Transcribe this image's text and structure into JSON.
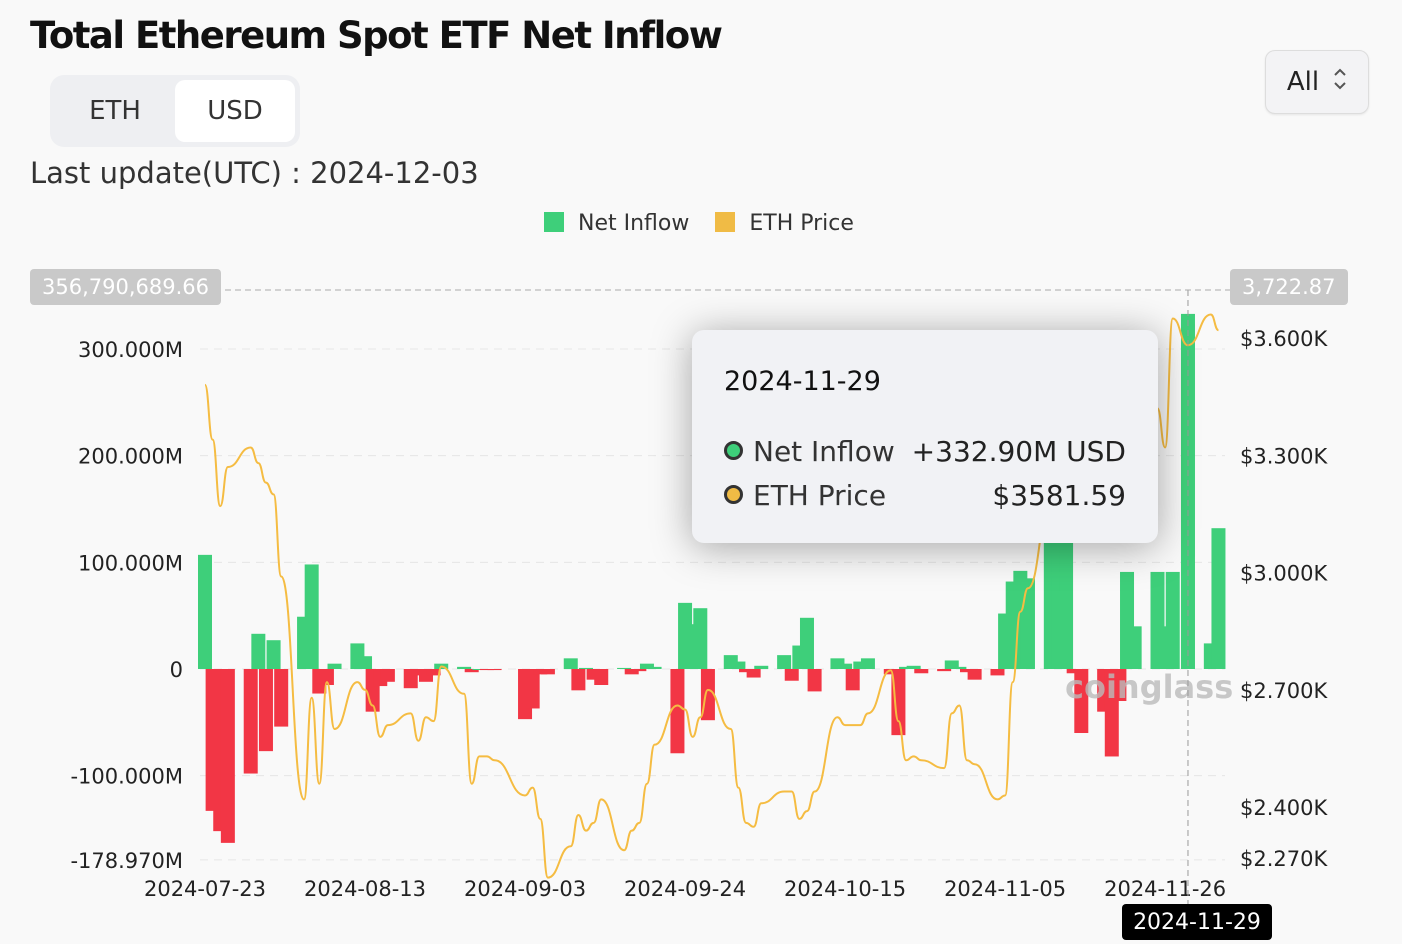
{
  "title": "Total Ethereum Spot ETF Net Inflow",
  "unit_toggle": {
    "options": [
      "ETH",
      "USD"
    ],
    "selected": "USD"
  },
  "range_select": {
    "value": "All"
  },
  "last_update": "Last update(UTC) : 2024-12-03",
  "watermark": "coinglass",
  "tooltip": {
    "date": "2024-11-29",
    "rows": [
      {
        "label": "Net Inflow",
        "value": "+332.90M USD",
        "color": "#3ecf7a"
      },
      {
        "label": "ETH Price",
        "value": "$3581.59",
        "color": "#f0bb45"
      }
    ]
  },
  "crosshair": {
    "left_value": "356,790,689.66",
    "right_value": "3,722.87",
    "x_label": "2024-11-29"
  },
  "chart_data": {
    "type": "bar+line",
    "legend": [
      {
        "name": "Net Inflow",
        "color": "#3ecf7a"
      },
      {
        "name": "ETH Price",
        "color": "#f0bb45"
      }
    ],
    "legend_position": "top",
    "grid": true,
    "y_left": {
      "ticks": [
        "300.000M",
        "200.000M",
        "100.000M",
        "0",
        "-100.000M",
        "-178.970M"
      ],
      "tick_values": [
        300,
        200,
        100,
        0,
        -100,
        -178.97
      ],
      "range": [
        -178.97,
        356.79
      ],
      "unit": "M USD"
    },
    "y_right": {
      "ticks": [
        "$3.600K",
        "$3.300K",
        "$3.000K",
        "$2.700K",
        "$2.400K",
        "$2.270K"
      ],
      "tick_values": [
        3600,
        3300,
        3000,
        2700,
        2400,
        2270
      ],
      "range": [
        2270,
        3722.87
      ]
    },
    "x_ticks": [
      "2024-07-23",
      "2024-08-13",
      "2024-09-03",
      "2024-09-24",
      "2024-10-15",
      "2024-11-05",
      "2024-11-26"
    ],
    "colors": {
      "positive": "#3ecf7a",
      "negative": "#f23645",
      "price": "#f5bc42"
    },
    "dates": [
      "2024-07-23",
      "2024-07-24",
      "2024-07-25",
      "2024-07-26",
      "2024-07-29",
      "2024-07-30",
      "2024-07-31",
      "2024-08-01",
      "2024-08-02",
      "2024-08-05",
      "2024-08-06",
      "2024-08-07",
      "2024-08-08",
      "2024-08-09",
      "2024-08-12",
      "2024-08-13",
      "2024-08-14",
      "2024-08-15",
      "2024-08-16",
      "2024-08-19",
      "2024-08-20",
      "2024-08-21",
      "2024-08-22",
      "2024-08-23",
      "2024-08-26",
      "2024-08-27",
      "2024-08-28",
      "2024-08-29",
      "2024-08-30",
      "2024-09-03",
      "2024-09-04",
      "2024-09-05",
      "2024-09-06",
      "2024-09-09",
      "2024-09-10",
      "2024-09-11",
      "2024-09-12",
      "2024-09-13",
      "2024-09-16",
      "2024-09-17",
      "2024-09-18",
      "2024-09-19",
      "2024-09-20",
      "2024-09-23",
      "2024-09-24",
      "2024-09-25",
      "2024-09-26",
      "2024-09-27",
      "2024-09-30",
      "2024-10-01",
      "2024-10-02",
      "2024-10-03",
      "2024-10-04",
      "2024-10-07",
      "2024-10-08",
      "2024-10-09",
      "2024-10-10",
      "2024-10-11",
      "2024-10-14",
      "2024-10-15",
      "2024-10-16",
      "2024-10-17",
      "2024-10-18",
      "2024-10-21",
      "2024-10-22",
      "2024-10-23",
      "2024-10-24",
      "2024-10-25",
      "2024-10-28",
      "2024-10-29",
      "2024-10-30",
      "2024-10-31",
      "2024-11-01",
      "2024-11-04",
      "2024-11-05",
      "2024-11-06",
      "2024-11-07",
      "2024-11-08",
      "2024-11-11",
      "2024-11-12",
      "2024-11-13",
      "2024-11-14",
      "2024-11-15",
      "2024-11-18",
      "2024-11-19",
      "2024-11-20",
      "2024-11-21",
      "2024-11-22",
      "2024-11-25",
      "2024-11-26",
      "2024-11-27",
      "2024-11-29",
      "2024-12-02",
      "2024-12-03"
    ],
    "net_inflow": [
      107,
      -133,
      -152,
      -163,
      -98,
      33,
      -77,
      27,
      -54,
      49,
      98,
      -23,
      -15,
      5,
      24,
      12,
      -40,
      -16,
      -12,
      -18,
      -6,
      -12,
      -6,
      5,
      2,
      -3,
      0,
      -1,
      -1,
      -47,
      -37,
      -5,
      -5,
      10,
      -20,
      1,
      -10,
      -15,
      1,
      -5,
      -2,
      5,
      2,
      -79,
      62,
      42,
      57,
      -48,
      13,
      7,
      -3,
      -8,
      3,
      13,
      -11,
      22,
      48,
      -21,
      10,
      5,
      -20,
      7,
      10,
      -5,
      -62,
      2,
      3,
      -4,
      -2,
      8,
      2,
      -3,
      -10,
      -6,
      52,
      82,
      92,
      85,
      295,
      135,
      146,
      -4,
      -60,
      -40,
      -82,
      -30,
      91,
      40,
      91,
      40,
      91,
      332.9,
      24,
      132
    ],
    "eth_price": [
      3480,
      3340,
      3170,
      3270,
      3320,
      3280,
      3230,
      3200,
      2990,
      2420,
      2680,
      2460,
      2720,
      2600,
      2720,
      2700,
      2660,
      2580,
      2610,
      2640,
      2570,
      2630,
      2620,
      2760,
      2690,
      2460,
      2530,
      2530,
      2520,
      2430,
      2450,
      2370,
      2220,
      2300,
      2380,
      2340,
      2360,
      2420,
      2290,
      2340,
      2360,
      2460,
      2560,
      2660,
      2650,
      2580,
      2630,
      2700,
      2600,
      2450,
      2360,
      2350,
      2410,
      2440,
      2440,
      2370,
      2390,
      2440,
      2630,
      2610,
      2610,
      2610,
      2640,
      2750,
      2620,
      2520,
      2530,
      2520,
      2500,
      2640,
      2660,
      2520,
      2510,
      2420,
      2430,
      2720,
      2900,
      2960,
      3180,
      3240,
      3200,
      3100,
      3080,
      3100,
      3130,
      3100,
      3350,
      3370,
      3420,
      3320,
      3650,
      3581.59,
      3660,
      3620
    ]
  }
}
